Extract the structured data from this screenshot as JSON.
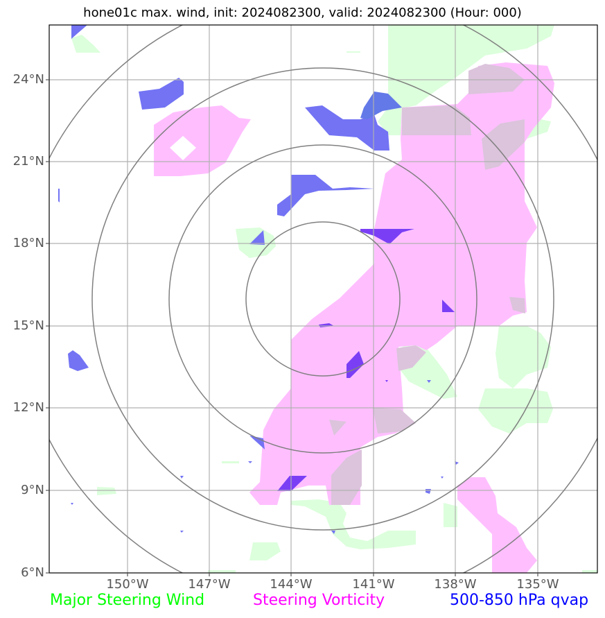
{
  "title": "hone01c max. wind, init: 2024082300, valid: 2024082300 (Hour: 000)",
  "lat_labels": [
    "24°N",
    "21°N",
    "18°N",
    "15°N",
    "12°N",
    "9°N",
    "6°N"
  ],
  "lon_labels": [
    "150°W",
    "147°W",
    "144°W",
    "141°W",
    "138°W",
    "135°W"
  ],
  "legend": {
    "wind": {
      "label": "Major Steering Wind",
      "color": "#00ff00"
    },
    "vorticity": {
      "label": "Steering Vorticity",
      "color": "#ff00ff"
    },
    "qvap": {
      "label": "500-850 hPa qvap",
      "color": "#0000ff"
    }
  },
  "colors": {
    "wind_fill": "#dcffdc",
    "vorticity_fill": "#ffbfff",
    "overlap_fill": "#dcc4dc",
    "qvap_fill": "#7373f4",
    "qvap_dark": "#7a3ff5",
    "grid": "#b0b0b0",
    "rings": "#808080"
  }
}
